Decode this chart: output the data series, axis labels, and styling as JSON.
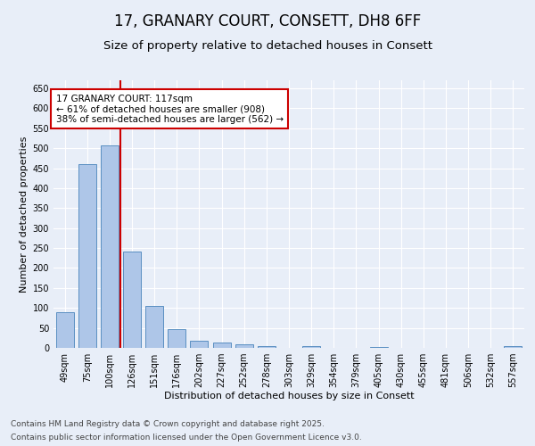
{
  "title": "17, GRANARY COURT, CONSETT, DH8 6FF",
  "subtitle": "Size of property relative to detached houses in Consett",
  "xlabel": "Distribution of detached houses by size in Consett",
  "ylabel": "Number of detached properties",
  "categories": [
    "49sqm",
    "75sqm",
    "100sqm",
    "126sqm",
    "151sqm",
    "176sqm",
    "202sqm",
    "227sqm",
    "252sqm",
    "278sqm",
    "303sqm",
    "329sqm",
    "354sqm",
    "379sqm",
    "405sqm",
    "430sqm",
    "455sqm",
    "481sqm",
    "506sqm",
    "532sqm",
    "557sqm"
  ],
  "values": [
    90,
    460,
    507,
    241,
    104,
    47,
    18,
    14,
    8,
    4,
    0,
    5,
    0,
    0,
    3,
    0,
    0,
    1,
    0,
    1,
    4
  ],
  "bar_color": "#aec6e8",
  "bar_edge_color": "#5a8fc2",
  "annotation_text_line1": "17 GRANARY COURT: 117sqm",
  "annotation_text_line2": "← 61% of detached houses are smaller (908)",
  "annotation_text_line3": "38% of semi-detached houses are larger (562) →",
  "annotation_box_color": "#ffffff",
  "annotation_box_edge": "#cc0000",
  "vline_color": "#cc0000",
  "vline_x": 2.5,
  "ylim": [
    0,
    670
  ],
  "yticks": [
    0,
    50,
    100,
    150,
    200,
    250,
    300,
    350,
    400,
    450,
    500,
    550,
    600,
    650
  ],
  "footer1": "Contains HM Land Registry data © Crown copyright and database right 2025.",
  "footer2": "Contains public sector information licensed under the Open Government Licence v3.0.",
  "bg_color": "#e8eef8",
  "plot_bg_color": "#e8eef8",
  "title_fontsize": 12,
  "subtitle_fontsize": 9.5,
  "axis_label_fontsize": 8,
  "tick_fontsize": 7,
  "annotation_fontsize": 7.5,
  "footer_fontsize": 6.5
}
